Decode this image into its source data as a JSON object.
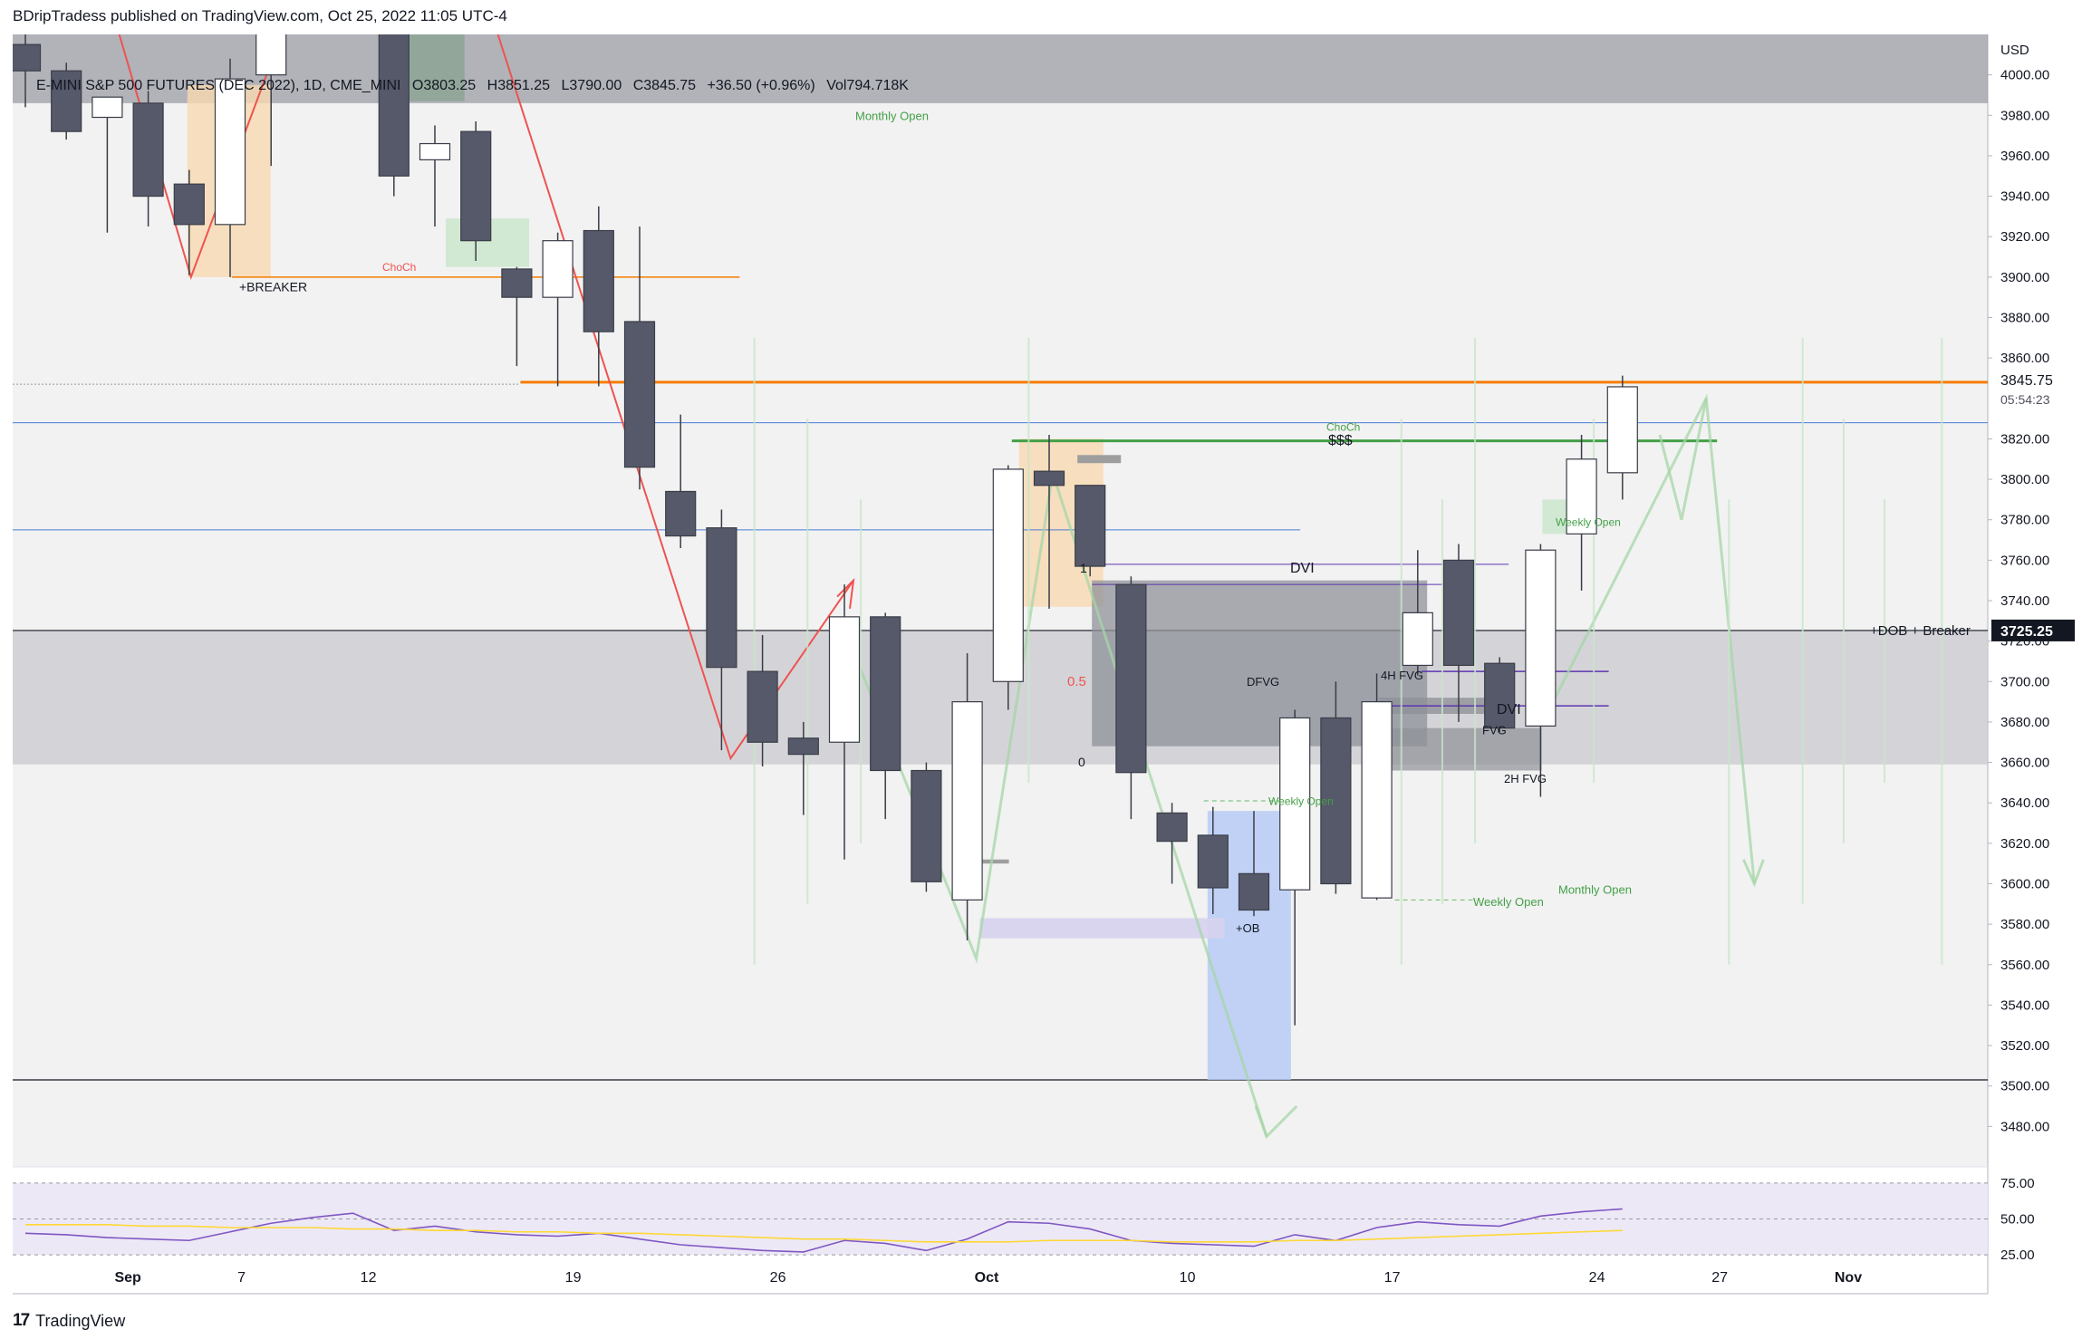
{
  "header": {
    "published": "BDripTradess published on TradingView.com, Oct 25, 2022 11:05 UTC-4",
    "legend": {
      "symbol": "E-MINI S&P 500 FUTURES (DEC 2022), 1D, CME_MINI",
      "open": "O3803.25",
      "high": "H3851.25",
      "low": "L3790.00",
      "close": "C3845.75",
      "change": "+36.50 (+0.96%)",
      "volume": "Vol794.718K"
    }
  },
  "footer": {
    "logo": "17",
    "brand": "TradingView"
  },
  "chart_data": {
    "type": "candlestick",
    "currency": "USD",
    "ylim": [
      3460,
      4020
    ],
    "y_ticks": [
      4000,
      3980,
      3960,
      3940,
      3920,
      3900,
      3880,
      3860,
      3820,
      3800,
      3780,
      3760,
      3740,
      3720,
      3700,
      3680,
      3660,
      3640,
      3620,
      3600,
      3580,
      3560,
      3540,
      3520,
      3500,
      3480
    ],
    "x_ticks": [
      {
        "label": "Sep",
        "i": 2.4
      },
      {
        "label": "7",
        "i": 5.4
      },
      {
        "label": "12",
        "i": 8.4
      },
      {
        "label": "19",
        "i": 13.4
      },
      {
        "label": "26",
        "i": 18.4
      },
      {
        "label": "Oct",
        "i": 23.4
      },
      {
        "label": "10",
        "i": 28.4
      },
      {
        "label": "17",
        "i": 33.4
      },
      {
        "label": "24",
        "i": 38.4
      },
      {
        "label": "27",
        "i": 41.4
      },
      {
        "label": "Nov",
        "i": 44.4
      }
    ],
    "last_price": "3845.75",
    "countdown": "05:54:23",
    "level_label_price": "3725.25",
    "candles": [
      {
        "i": 0,
        "o": 4015,
        "h": 4030,
        "l": 3984,
        "c": 4002
      },
      {
        "i": 1,
        "o": 4002,
        "h": 4006,
        "l": 3968,
        "c": 3972
      },
      {
        "i": 2,
        "o": 3979,
        "h": 3985,
        "l": 3922,
        "c": 3989
      },
      {
        "i": 3,
        "o": 3986,
        "h": 3992,
        "l": 3925,
        "c": 3940
      },
      {
        "i": 4,
        "o": 3946,
        "h": 3953,
        "l": 3901,
        "c": 3926
      },
      {
        "i": 5,
        "o": 3926,
        "h": 4008,
        "l": 3900,
        "c": 3998
      },
      {
        "i": 6,
        "o": 4000,
        "h": 4030,
        "l": 3955,
        "c": 4025
      },
      {
        "i": 9,
        "o": 4025,
        "h": 4030,
        "l": 3940,
        "c": 3950
      },
      {
        "i": 10,
        "o": 3958,
        "h": 3975,
        "l": 3925,
        "c": 3966
      },
      {
        "i": 11,
        "o": 3972,
        "h": 3977,
        "l": 3908,
        "c": 3918
      },
      {
        "i": 12,
        "o": 3904,
        "h": 3905,
        "l": 3856,
        "c": 3890
      },
      {
        "i": 13,
        "o": 3890,
        "h": 3922,
        "l": 3846,
        "c": 3918
      },
      {
        "i": 14,
        "o": 3923,
        "h": 3935,
        "l": 3846,
        "c": 3873
      },
      {
        "i": 15,
        "o": 3878,
        "h": 3925,
        "l": 3795,
        "c": 3806
      },
      {
        "i": 16,
        "o": 3794,
        "h": 3832,
        "l": 3766,
        "c": 3772
      },
      {
        "i": 17,
        "o": 3776,
        "h": 3785,
        "l": 3666,
        "c": 3707
      },
      {
        "i": 18,
        "o": 3705,
        "h": 3723,
        "l": 3658,
        "c": 3670
      },
      {
        "i": 19,
        "o": 3672,
        "h": 3680,
        "l": 3634,
        "c": 3664
      },
      {
        "i": 20,
        "o": 3670,
        "h": 3748,
        "l": 3612,
        "c": 3732
      },
      {
        "i": 21,
        "o": 3732,
        "h": 3734,
        "l": 3632,
        "c": 3656
      },
      {
        "i": 22,
        "o": 3656,
        "h": 3660,
        "l": 3596,
        "c": 3601
      },
      {
        "i": 23,
        "o": 3592,
        "h": 3714,
        "l": 3572,
        "c": 3690
      },
      {
        "i": 24,
        "o": 3700,
        "h": 3807,
        "l": 3686,
        "c": 3805
      },
      {
        "i": 25,
        "o": 3804,
        "h": 3822,
        "l": 3736,
        "c": 3797
      },
      {
        "i": 26,
        "o": 3797,
        "h": 3797,
        "l": 3752,
        "c": 3757
      },
      {
        "i": 27,
        "o": 3748,
        "h": 3752,
        "l": 3632,
        "c": 3655
      },
      {
        "i": 28,
        "o": 3635,
        "h": 3640,
        "l": 3600,
        "c": 3621
      },
      {
        "i": 29,
        "o": 3624,
        "h": 3638,
        "l": 3585,
        "c": 3598
      },
      {
        "i": 30,
        "o": 3605,
        "h": 3636,
        "l": 3584,
        "c": 3587
      },
      {
        "i": 31,
        "o": 3597,
        "h": 3686,
        "l": 3530,
        "c": 3682
      },
      {
        "i": 32,
        "o": 3682,
        "h": 3700,
        "l": 3595,
        "c": 3600
      },
      {
        "i": 33,
        "o": 3593,
        "h": 3704,
        "l": 3592,
        "c": 3690
      },
      {
        "i": 34,
        "o": 3708,
        "h": 3765,
        "l": 3703,
        "c": 3734
      },
      {
        "i": 35,
        "o": 3760,
        "h": 3768,
        "l": 3680,
        "c": 3708
      },
      {
        "i": 36,
        "o": 3709,
        "h": 3712,
        "l": 3675,
        "c": 3677
      },
      {
        "i": 37,
        "o": 3678,
        "h": 3768,
        "l": 3643,
        "c": 3765
      },
      {
        "i": 38,
        "o": 3773,
        "h": 3822,
        "l": 3745,
        "c": 3810
      },
      {
        "i": 39,
        "o": 3803.25,
        "h": 3851.25,
        "l": 3790,
        "c": 3845.75
      }
    ],
    "annotations": [
      "Monthly Open",
      "ChoCh",
      "+BREAKER",
      "$$$",
      "ChoCh",
      "DVI",
      "1",
      "0.5",
      "0",
      "DFVG",
      "4H FVG",
      "FVG",
      "DVI",
      "2H FVG",
      "Weekly Open",
      "+OB",
      "Weekly Open",
      "Weekly Open",
      "Monthly Open",
      "+DOB + Breaker"
    ],
    "rsi": {
      "levels": [
        75,
        50,
        25
      ],
      "rsi_line": [
        40,
        39,
        37,
        36,
        35,
        41,
        47,
        51,
        54,
        42,
        45,
        41,
        39,
        38,
        40,
        36,
        32,
        30,
        28,
        27,
        35,
        33,
        28,
        36,
        48,
        47,
        43,
        35,
        33,
        32,
        31,
        39,
        35,
        44,
        48,
        46,
        45,
        52,
        55,
        57
      ],
      "ma_line": [
        46,
        46,
        46,
        45,
        45,
        44,
        44,
        44,
        43,
        43,
        42,
        42,
        41,
        41,
        40,
        40,
        39,
        38,
        37,
        36,
        36,
        35,
        34,
        34,
        34,
        35,
        35,
        35,
        34,
        34,
        34,
        35,
        35,
        36,
        37,
        38,
        39,
        40,
        41,
        42
      ]
    }
  }
}
